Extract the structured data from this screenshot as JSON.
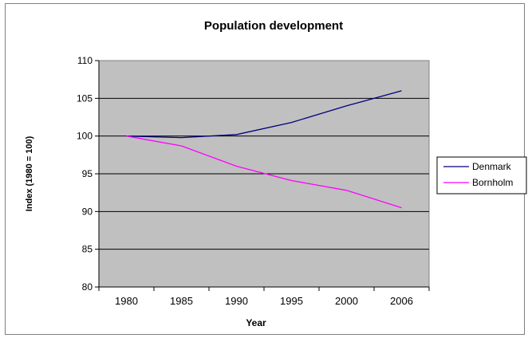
{
  "chart_data": {
    "type": "line",
    "title": "Population development",
    "xlabel": "Year",
    "ylabel": "Index (1980 = 100)",
    "categories": [
      "1980",
      "1985",
      "1990",
      "1995",
      "2000",
      "2006"
    ],
    "ylim": [
      80,
      110
    ],
    "yticks": [
      80,
      85,
      90,
      95,
      100,
      105,
      110
    ],
    "grid": true,
    "legend": "right",
    "plot_background": "#c0c0c0",
    "series": [
      {
        "name": "Denmark",
        "color": "#000080",
        "values": [
          100,
          99.8,
          100.2,
          101.8,
          104.0,
          106.0
        ]
      },
      {
        "name": "Bornholm",
        "color": "#ff00ff",
        "values": [
          100,
          98.7,
          96.0,
          94.1,
          92.8,
          90.5
        ]
      }
    ]
  }
}
